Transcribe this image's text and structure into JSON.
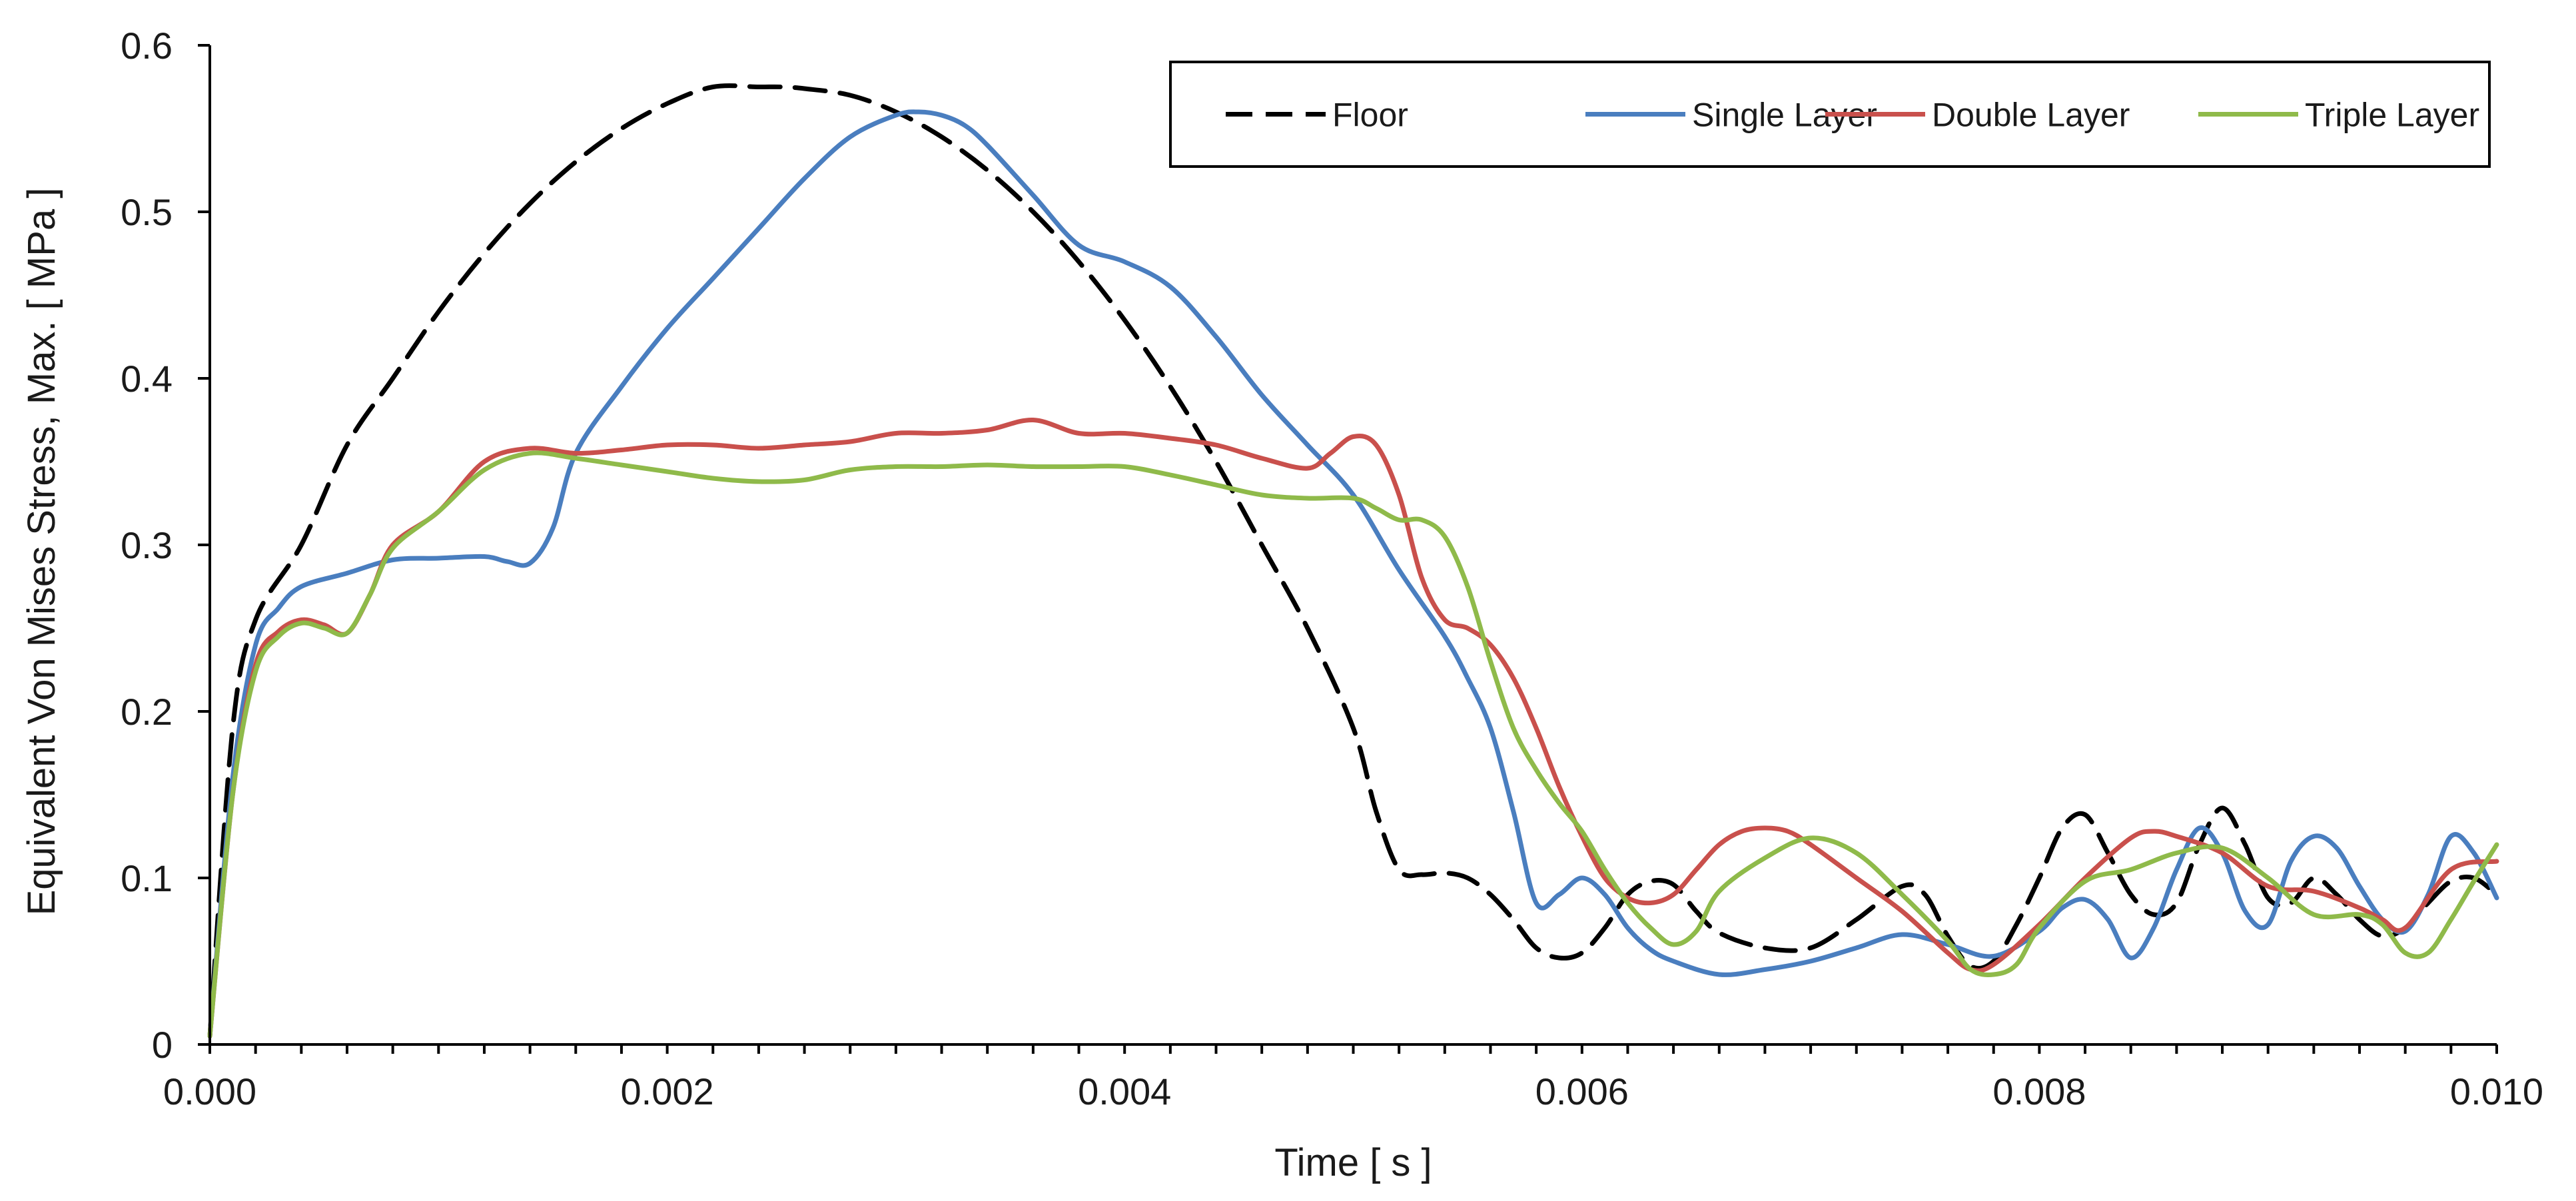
{
  "chart_data": {
    "type": "line",
    "title": "",
    "xlabel": "Time [ s ]",
    "ylabel": "Equivalent Von Mises Stress, Max. [ MPa ]",
    "xlim": [
      0,
      0.01
    ],
    "ylim": [
      0,
      0.6
    ],
    "xticks": [
      0,
      0.002,
      0.004,
      0.006,
      0.008,
      0.01
    ],
    "xtick_labels": [
      "0.000",
      "0.002",
      "0.004",
      "0.006",
      "0.008",
      "0.010"
    ],
    "yticks": [
      0,
      0.1,
      0.2,
      0.3,
      0.4,
      0.5,
      0.6
    ],
    "ytick_labels": [
      "0",
      "0.1",
      "0.2",
      "0.3",
      "0.4",
      "0.5",
      "0.6"
    ],
    "grid": false,
    "legend_position": "top-right",
    "series": [
      {
        "name": "Floor",
        "color": "#000000",
        "dash": "dashed",
        "x": [
          0,
          0.0001,
          0.0002,
          0.0004,
          0.0006,
          0.0008,
          0.001,
          0.0012,
          0.0014,
          0.0016,
          0.0018,
          0.002,
          0.0022,
          0.0024,
          0.0025,
          0.0026,
          0.0028,
          0.003,
          0.0032,
          0.0034,
          0.0036,
          0.0038,
          0.004,
          0.0042,
          0.0044,
          0.0046,
          0.0048,
          0.005,
          0.0051,
          0.0052,
          0.0053,
          0.0054,
          0.0055,
          0.0056,
          0.0057,
          0.0058,
          0.0059,
          0.006,
          0.0061,
          0.0062,
          0.0063,
          0.0064,
          0.0065,
          0.0066,
          0.0068,
          0.007,
          0.0072,
          0.0074,
          0.0075,
          0.0076,
          0.0077,
          0.0078,
          0.0079,
          0.008,
          0.0081,
          0.0082,
          0.0083,
          0.0084,
          0.0085,
          0.0086,
          0.0087,
          0.0088,
          0.0089,
          0.009,
          0.0091,
          0.0092,
          0.0093,
          0.0094,
          0.0095,
          0.0096,
          0.0097,
          0.0098,
          0.0099,
          0.01
        ],
        "values": [
          0.005,
          0.19,
          0.255,
          0.3,
          0.36,
          0.4,
          0.44,
          0.475,
          0.505,
          0.53,
          0.55,
          0.565,
          0.575,
          0.575,
          0.575,
          0.574,
          0.57,
          0.56,
          0.545,
          0.525,
          0.5,
          0.47,
          0.435,
          0.395,
          0.35,
          0.3,
          0.25,
          0.19,
          0.14,
          0.105,
          0.102,
          0.103,
          0.1,
          0.09,
          0.075,
          0.058,
          0.052,
          0.055,
          0.07,
          0.09,
          0.098,
          0.096,
          0.08,
          0.067,
          0.058,
          0.058,
          0.075,
          0.095,
          0.09,
          0.065,
          0.047,
          0.05,
          0.072,
          0.1,
          0.13,
          0.138,
          0.115,
          0.09,
          0.078,
          0.085,
          0.12,
          0.142,
          0.12,
          0.088,
          0.085,
          0.1,
          0.09,
          0.075,
          0.065,
          0.07,
          0.085,
          0.098,
          0.1,
          0.09
        ]
      },
      {
        "name": "Single Layer",
        "color": "#4a7ebf",
        "dash": "solid",
        "x": [
          0,
          0.0001,
          0.0002,
          0.0003,
          0.0004,
          0.0006,
          0.0008,
          0.001,
          0.0012,
          0.0013,
          0.0014,
          0.0015,
          0.0016,
          0.0018,
          0.002,
          0.0022,
          0.0024,
          0.0026,
          0.0028,
          0.003,
          0.0031,
          0.0032,
          0.0033,
          0.0034,
          0.0036,
          0.0038,
          0.004,
          0.0042,
          0.0044,
          0.0046,
          0.0048,
          0.005,
          0.0052,
          0.0054,
          0.0055,
          0.0056,
          0.0057,
          0.0058,
          0.0059,
          0.006,
          0.0061,
          0.0062,
          0.0063,
          0.0064,
          0.0066,
          0.0068,
          0.007,
          0.0072,
          0.0074,
          0.0076,
          0.0078,
          0.008,
          0.0081,
          0.0082,
          0.0083,
          0.0084,
          0.0085,
          0.0086,
          0.0087,
          0.0088,
          0.0089,
          0.009,
          0.0091,
          0.0092,
          0.0093,
          0.0094,
          0.0095,
          0.0096,
          0.0097,
          0.0098,
          0.0099,
          0.01
        ],
        "values": [
          0.005,
          0.16,
          0.24,
          0.262,
          0.275,
          0.283,
          0.291,
          0.292,
          0.293,
          0.29,
          0.289,
          0.31,
          0.355,
          0.395,
          0.43,
          0.46,
          0.49,
          0.52,
          0.545,
          0.558,
          0.56,
          0.558,
          0.552,
          0.54,
          0.51,
          0.48,
          0.47,
          0.455,
          0.425,
          0.39,
          0.36,
          0.33,
          0.285,
          0.245,
          0.22,
          0.19,
          0.14,
          0.085,
          0.09,
          0.1,
          0.09,
          0.07,
          0.057,
          0.05,
          0.042,
          0.045,
          0.05,
          0.058,
          0.066,
          0.06,
          0.053,
          0.068,
          0.082,
          0.087,
          0.075,
          0.052,
          0.07,
          0.105,
          0.13,
          0.115,
          0.08,
          0.072,
          0.11,
          0.125,
          0.118,
          0.095,
          0.075,
          0.068,
          0.09,
          0.125,
          0.115,
          0.088
        ]
      },
      {
        "name": "Double Layer",
        "color": "#c9504c",
        "dash": "solid",
        "x": [
          0,
          0.0001,
          0.0002,
          0.0003,
          0.0004,
          0.0005,
          0.0006,
          0.0007,
          0.0008,
          0.001,
          0.0012,
          0.0014,
          0.0016,
          0.0018,
          0.002,
          0.0022,
          0.0024,
          0.0026,
          0.0028,
          0.003,
          0.0032,
          0.0034,
          0.0036,
          0.0038,
          0.004,
          0.0042,
          0.0044,
          0.0046,
          0.0048,
          0.0049,
          0.005,
          0.0051,
          0.0052,
          0.0053,
          0.0054,
          0.0055,
          0.0056,
          0.0057,
          0.0058,
          0.0059,
          0.006,
          0.0061,
          0.0062,
          0.0063,
          0.0064,
          0.0065,
          0.0066,
          0.0067,
          0.0068,
          0.0069,
          0.007,
          0.0072,
          0.0074,
          0.0076,
          0.0077,
          0.0078,
          0.008,
          0.0082,
          0.0084,
          0.0085,
          0.0086,
          0.0088,
          0.009,
          0.0092,
          0.0094,
          0.0095,
          0.0096,
          0.0098,
          0.01
        ],
        "values": [
          0.005,
          0.15,
          0.228,
          0.248,
          0.255,
          0.252,
          0.247,
          0.27,
          0.3,
          0.32,
          0.35,
          0.358,
          0.355,
          0.357,
          0.36,
          0.36,
          0.358,
          0.36,
          0.362,
          0.367,
          0.367,
          0.369,
          0.375,
          0.367,
          0.367,
          0.364,
          0.36,
          0.352,
          0.346,
          0.355,
          0.365,
          0.36,
          0.33,
          0.28,
          0.255,
          0.25,
          0.24,
          0.22,
          0.19,
          0.155,
          0.125,
          0.1,
          0.088,
          0.085,
          0.09,
          0.105,
          0.12,
          0.128,
          0.13,
          0.128,
          0.12,
          0.1,
          0.08,
          0.055,
          0.045,
          0.048,
          0.072,
          0.1,
          0.124,
          0.128,
          0.125,
          0.115,
          0.095,
          0.092,
          0.082,
          0.075,
          0.07,
          0.105,
          0.11
        ]
      },
      {
        "name": "Triple Layer",
        "color": "#8fba4a",
        "dash": "solid",
        "x": [
          0,
          0.0001,
          0.0002,
          0.0003,
          0.0004,
          0.0005,
          0.0006,
          0.0007,
          0.0008,
          0.001,
          0.0012,
          0.0014,
          0.0016,
          0.0018,
          0.002,
          0.0022,
          0.0024,
          0.0026,
          0.0028,
          0.003,
          0.0032,
          0.0034,
          0.0036,
          0.0038,
          0.004,
          0.0042,
          0.0044,
          0.0046,
          0.0048,
          0.005,
          0.0051,
          0.0052,
          0.0053,
          0.0054,
          0.0055,
          0.0056,
          0.0057,
          0.0058,
          0.0059,
          0.006,
          0.0061,
          0.0062,
          0.0063,
          0.0064,
          0.0065,
          0.0066,
          0.0068,
          0.007,
          0.0072,
          0.0074,
          0.0076,
          0.0077,
          0.0078,
          0.0079,
          0.008,
          0.0082,
          0.0084,
          0.0086,
          0.0088,
          0.009,
          0.0092,
          0.0094,
          0.0095,
          0.0096,
          0.0097,
          0.0098,
          0.0099,
          0.01
        ],
        "values": [
          0.005,
          0.15,
          0.224,
          0.245,
          0.253,
          0.25,
          0.247,
          0.27,
          0.298,
          0.32,
          0.345,
          0.355,
          0.352,
          0.348,
          0.344,
          0.34,
          0.338,
          0.339,
          0.345,
          0.347,
          0.347,
          0.348,
          0.347,
          0.347,
          0.347,
          0.342,
          0.336,
          0.33,
          0.328,
          0.328,
          0.322,
          0.315,
          0.315,
          0.305,
          0.275,
          0.23,
          0.19,
          0.165,
          0.145,
          0.128,
          0.105,
          0.085,
          0.07,
          0.06,
          0.068,
          0.092,
          0.112,
          0.124,
          0.115,
          0.09,
          0.062,
          0.045,
          0.042,
          0.048,
          0.07,
          0.098,
          0.105,
          0.115,
          0.118,
          0.1,
          0.078,
          0.078,
          0.072,
          0.055,
          0.055,
          0.075,
          0.098,
          0.12
        ]
      }
    ]
  }
}
